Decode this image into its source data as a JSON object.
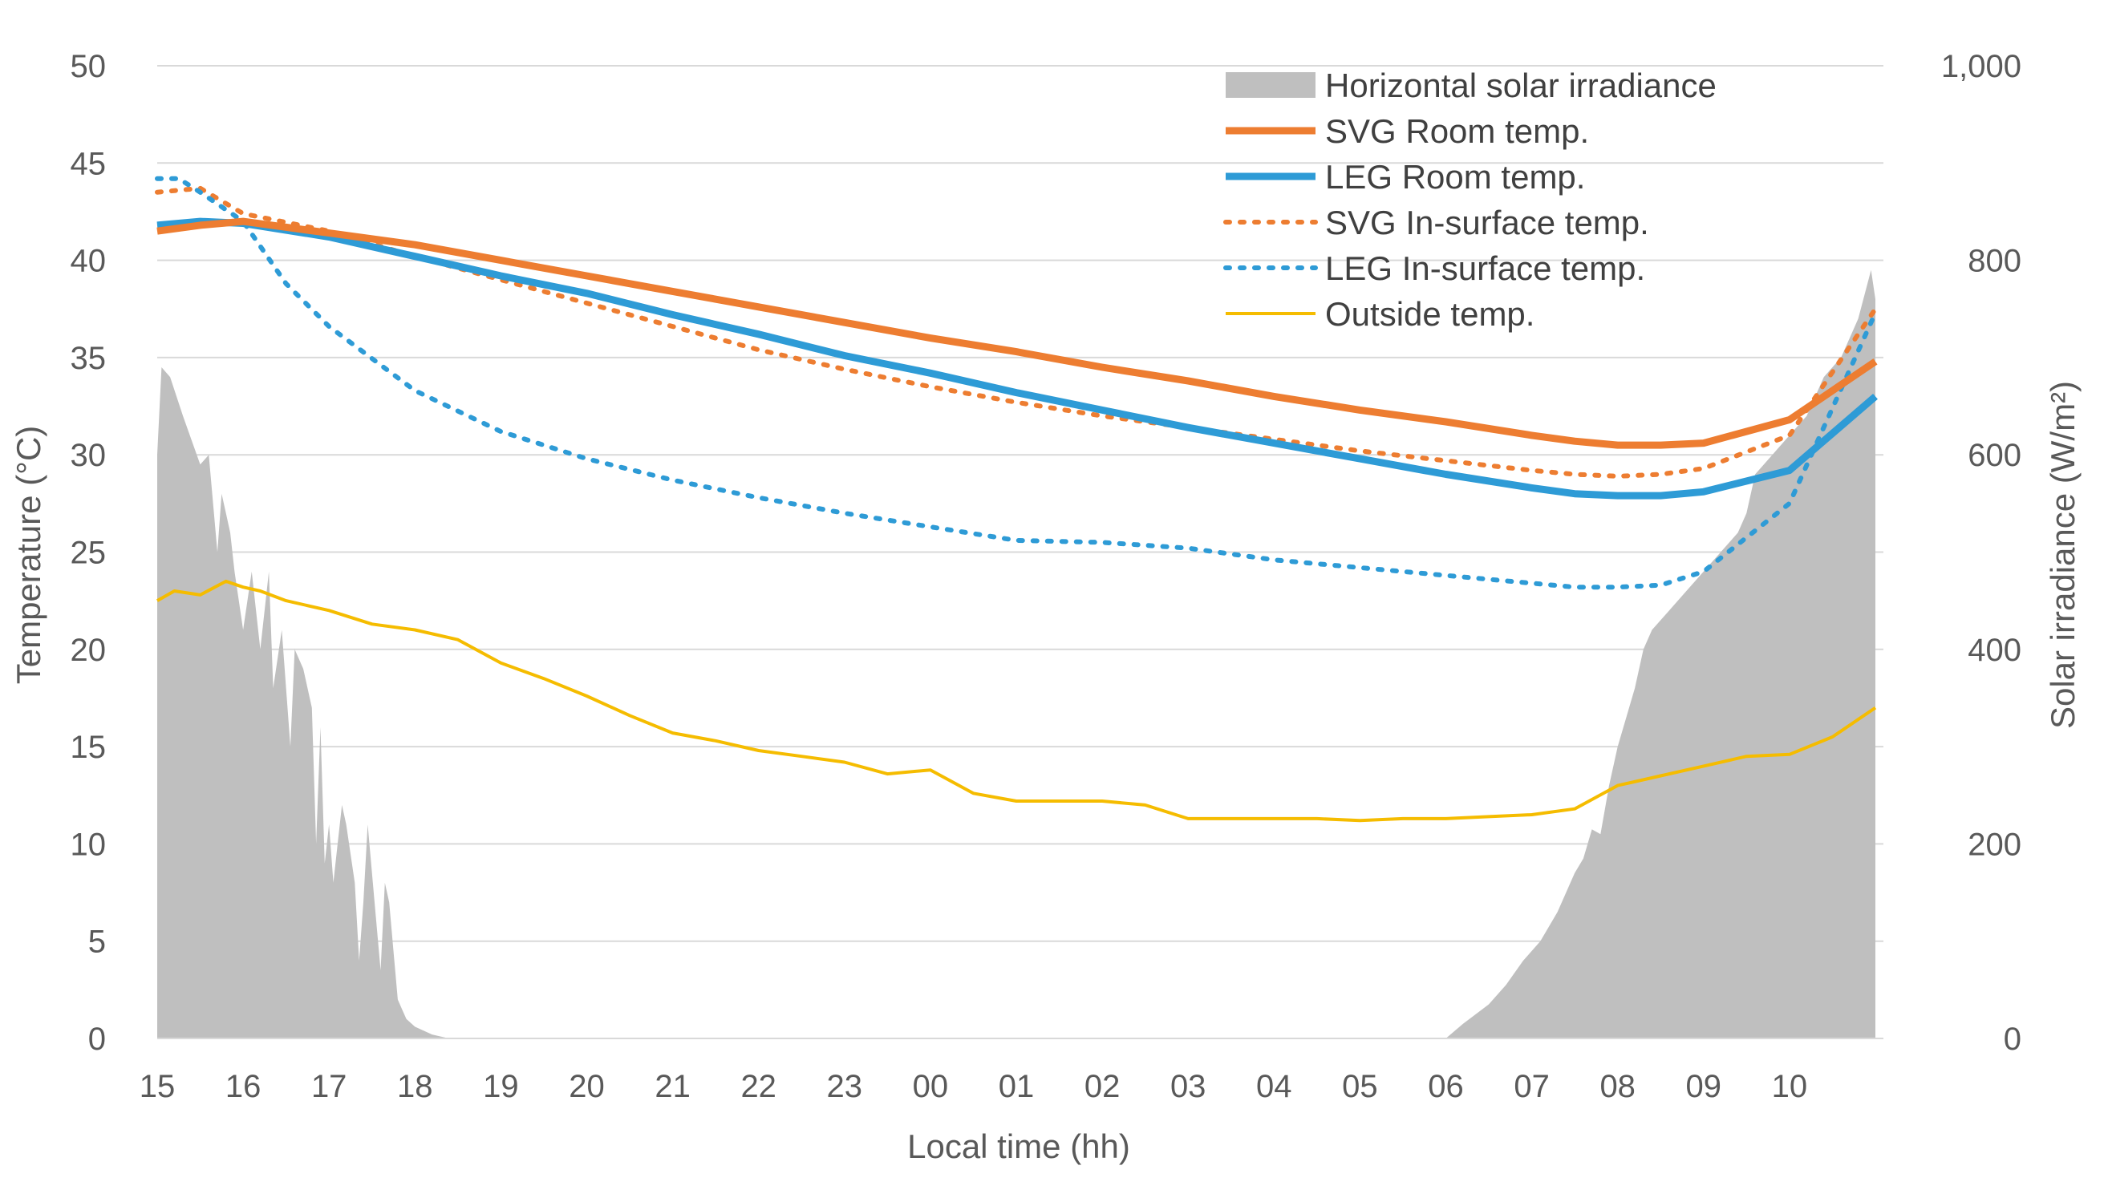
{
  "chart_data": {
    "type": "line",
    "title": "",
    "xlabel": "Local time (hh)",
    "ylabel": "Temperature (°C)",
    "y2label": "Solar irradiance (W/m²)",
    "ylim": [
      0,
      50
    ],
    "y2lim": [
      0,
      1000
    ],
    "x_range_hours": [
      0,
      20
    ],
    "grid": true,
    "legend_position": "top-right",
    "x_ticks": [
      "15",
      "16",
      "17",
      "18",
      "19",
      "20",
      "21",
      "22",
      "23",
      "00",
      "01",
      "02",
      "03",
      "04",
      "05",
      "06",
      "07",
      "08",
      "09",
      "10"
    ],
    "y_ticks": [
      "0",
      "5",
      "10",
      "15",
      "20",
      "25",
      "30",
      "35",
      "40",
      "45",
      "50"
    ],
    "y2_ticks": [
      "0",
      "200",
      "400",
      "600",
      "800",
      "1,000"
    ],
    "colors": {
      "irradiance": "#bfbfbf",
      "svg_room": "#ed7d31",
      "leg_room": "#2e9bd6",
      "svg_surface": "#ed7d31",
      "leg_surface": "#2e9bd6",
      "outside": "#f5bc00",
      "grid": "#d9d9d9",
      "axis_text": "#595959"
    },
    "legend": [
      {
        "key": "irradiance",
        "label": "Horizontal solar irradiance",
        "style": "area"
      },
      {
        "key": "svg_room",
        "label": "SVG Room temp.",
        "style": "solid"
      },
      {
        "key": "leg_room",
        "label": "LEG Room temp.",
        "style": "solid"
      },
      {
        "key": "svg_surface",
        "label": "SVG In-surface temp.",
        "style": "dotted"
      },
      {
        "key": "leg_surface",
        "label": "LEG In-surface temp.",
        "style": "dotted"
      },
      {
        "key": "outside",
        "label": "Outside temp.",
        "style": "thin"
      }
    ],
    "irradiance": {
      "name": "Horizontal solar irradiance",
      "axis": "right",
      "x": [
        0,
        0.05,
        0.15,
        0.3,
        0.5,
        0.6,
        0.7,
        0.75,
        0.8,
        0.85,
        0.9,
        1.0,
        1.1,
        1.2,
        1.3,
        1.35,
        1.45,
        1.55,
        1.6,
        1.7,
        1.8,
        1.85,
        1.9,
        1.95,
        2.0,
        2.05,
        2.1,
        2.15,
        2.2,
        2.3,
        2.35,
        2.4,
        2.45,
        2.55,
        2.6,
        2.65,
        2.7,
        2.75,
        2.8,
        2.85,
        2.9,
        3.0,
        3.1,
        3.2,
        3.3,
        3.4,
        3.5,
        3.6,
        3.7,
        3.75,
        15.0,
        15.2,
        15.5,
        15.7,
        15.9,
        16.1,
        16.3,
        16.5,
        16.6,
        16.7,
        16.8,
        16.9,
        17.0,
        17.1,
        17.2,
        17.3,
        17.4,
        17.6,
        17.8,
        18.0,
        18.2,
        18.4,
        18.5,
        18.6,
        18.8,
        19.0,
        19.2,
        19.4,
        19.6,
        19.8,
        19.95,
        20.0
      ],
      "y": [
        600,
        690,
        680,
        640,
        590,
        600,
        500,
        560,
        540,
        520,
        480,
        420,
        480,
        400,
        480,
        360,
        420,
        300,
        400,
        380,
        340,
        200,
        320,
        180,
        220,
        160,
        200,
        240,
        220,
        160,
        80,
        140,
        220,
        120,
        70,
        160,
        140,
        90,
        40,
        30,
        20,
        12,
        8,
        4,
        2,
        0,
        0,
        0,
        0,
        0,
        0,
        15,
        35,
        55,
        80,
        100,
        130,
        170,
        185,
        215,
        210,
        260,
        300,
        330,
        360,
        400,
        420,
        440,
        460,
        480,
        500,
        520,
        540,
        580,
        600,
        620,
        640,
        680,
        700,
        740,
        790,
        760
      ]
    },
    "series": [
      {
        "key": "svg_room",
        "name": "SVG Room temp.",
        "axis": "left",
        "x": [
          0,
          0.5,
          1,
          2,
          3,
          4,
          5,
          6,
          7,
          8,
          9,
          10,
          11,
          12,
          13,
          14,
          15,
          16,
          16.5,
          17,
          17.5,
          18,
          19,
          20
        ],
        "y": [
          41.5,
          41.8,
          42.0,
          41.4,
          40.8,
          40.0,
          39.2,
          38.4,
          37.6,
          36.8,
          36.0,
          35.3,
          34.5,
          33.8,
          33.0,
          32.3,
          31.7,
          31.0,
          30.7,
          30.5,
          30.5,
          30.6,
          31.8,
          34.8
        ]
      },
      {
        "key": "leg_room",
        "name": "LEG Room temp.",
        "axis": "left",
        "x": [
          0,
          0.5,
          1,
          2,
          3,
          4,
          5,
          6,
          7,
          8,
          9,
          10,
          11,
          12,
          13,
          14,
          15,
          16,
          16.5,
          17,
          17.5,
          18,
          19,
          20
        ],
        "y": [
          41.8,
          42.0,
          41.9,
          41.2,
          40.2,
          39.2,
          38.3,
          37.2,
          36.2,
          35.1,
          34.2,
          33.2,
          32.3,
          31.4,
          30.6,
          29.8,
          29.0,
          28.3,
          28.0,
          27.9,
          27.9,
          28.1,
          29.2,
          33.0
        ]
      },
      {
        "key": "svg_surface",
        "name": "SVG In-surface temp.",
        "axis": "left",
        "x": [
          0,
          0.5,
          1,
          2,
          3,
          4,
          5,
          6,
          7,
          8,
          9,
          10,
          11,
          12,
          13,
          14,
          15,
          16,
          16.5,
          17,
          17.5,
          18,
          19,
          20
        ],
        "y": [
          43.5,
          43.7,
          42.4,
          41.5,
          40.2,
          39.0,
          37.8,
          36.6,
          35.4,
          34.4,
          33.5,
          32.7,
          32.0,
          31.4,
          30.8,
          30.2,
          29.7,
          29.2,
          29.0,
          28.9,
          29.0,
          29.3,
          31.0,
          37.5
        ]
      },
      {
        "key": "leg_surface",
        "name": "LEG In-surface temp.",
        "axis": "left",
        "x": [
          0,
          0.25,
          0.5,
          1,
          1.5,
          2,
          3,
          4,
          5,
          6,
          7,
          8,
          9,
          10,
          11,
          12,
          13,
          14,
          15,
          16,
          16.5,
          17,
          17.5,
          18,
          19,
          20
        ],
        "y": [
          44.2,
          44.2,
          43.5,
          42.0,
          38.8,
          36.6,
          33.3,
          31.2,
          29.8,
          28.7,
          27.8,
          27.0,
          26.3,
          25.6,
          25.5,
          25.2,
          24.6,
          24.2,
          23.8,
          23.4,
          23.2,
          23.2,
          23.3,
          24.0,
          27.5,
          37.3
        ]
      },
      {
        "key": "outside",
        "name": "Outside temp.",
        "axis": "left",
        "x": [
          0,
          0.2,
          0.5,
          0.8,
          1,
          1.2,
          1.5,
          2,
          2.5,
          3,
          3.5,
          4,
          4.5,
          5,
          5.5,
          6,
          6.5,
          7,
          7.5,
          8,
          8.5,
          9,
          9.5,
          10,
          10.5,
          11,
          11.5,
          12,
          12.5,
          13,
          13.5,
          14,
          14.5,
          15,
          15.5,
          16,
          16.5,
          17,
          17.5,
          18,
          18.5,
          19,
          19.5,
          20
        ],
        "y": [
          22.5,
          23.0,
          22.8,
          23.5,
          23.2,
          23.0,
          22.5,
          22.0,
          21.3,
          21.0,
          20.5,
          19.3,
          18.5,
          17.6,
          16.6,
          15.7,
          15.3,
          14.8,
          14.5,
          14.2,
          13.6,
          13.8,
          12.6,
          12.2,
          12.2,
          12.2,
          12.0,
          11.3,
          11.3,
          11.3,
          11.3,
          11.2,
          11.3,
          11.3,
          11.4,
          11.5,
          11.8,
          13.0,
          13.5,
          14.0,
          14.5,
          14.6,
          15.5,
          17.0
        ]
      }
    ]
  }
}
